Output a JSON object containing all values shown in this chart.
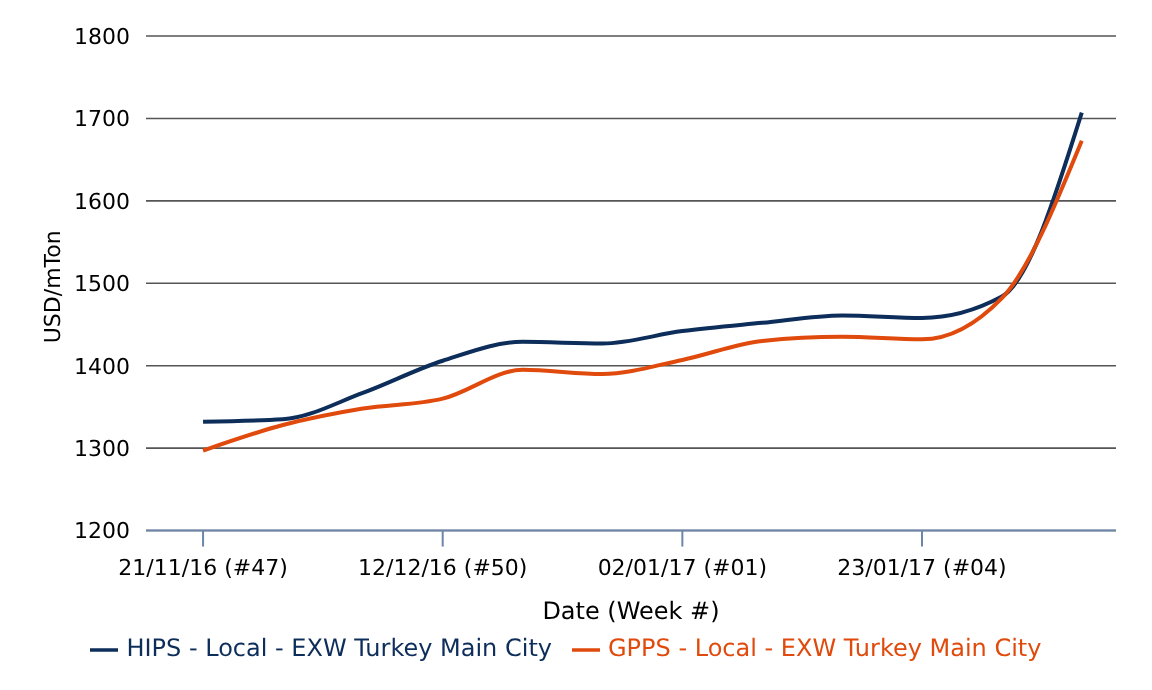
{
  "chart_data": {
    "type": "line",
    "xlabel": "Date (Week #)",
    "ylabel": "USD/mTon",
    "x": [
      "2016-11-21",
      "2016-11-28",
      "2016-12-05",
      "2016-12-12",
      "2016-12-19",
      "2016-12-26",
      "2017-01-02",
      "2017-01-09",
      "2017-01-16",
      "2017-01-23",
      "2017-01-30",
      "2017-02-06"
    ],
    "series": [
      {
        "name": "HIPS - Local - EXW Turkey Main City",
        "color": "#0d2d5a",
        "values": [
          1332,
          1335,
          1367,
          1406,
          1429,
          1427,
          1442,
          1452,
          1461,
          1458,
          1484,
          1707
        ]
      },
      {
        "name": "GPPS - Local - EXW Turkey Main City",
        "color": "#e04a0c",
        "values": [
          1297,
          1328,
          1348,
          1360,
          1395,
          1390,
          1407,
          1430,
          1435,
          1432,
          1482,
          1673
        ]
      }
    ],
    "xlim": [
      "2016-11-16",
      "2017-02-09"
    ],
    "xticks": [
      {
        "value": "2016-11-21",
        "label": "21/11/16 (#47)"
      },
      {
        "value": "2016-12-12",
        "label": "12/12/16 (#50)"
      },
      {
        "value": "2017-01-02",
        "label": "02/01/17 (#01)"
      },
      {
        "value": "2017-01-23",
        "label": "23/01/17 (#04)"
      }
    ],
    "ylim": [
      1200,
      1800
    ],
    "yticks": [
      1200,
      1300,
      1400,
      1500,
      1600,
      1700,
      1800
    ],
    "grid": "y",
    "legend": "bottom",
    "marker": "none",
    "line_style": "solid"
  }
}
